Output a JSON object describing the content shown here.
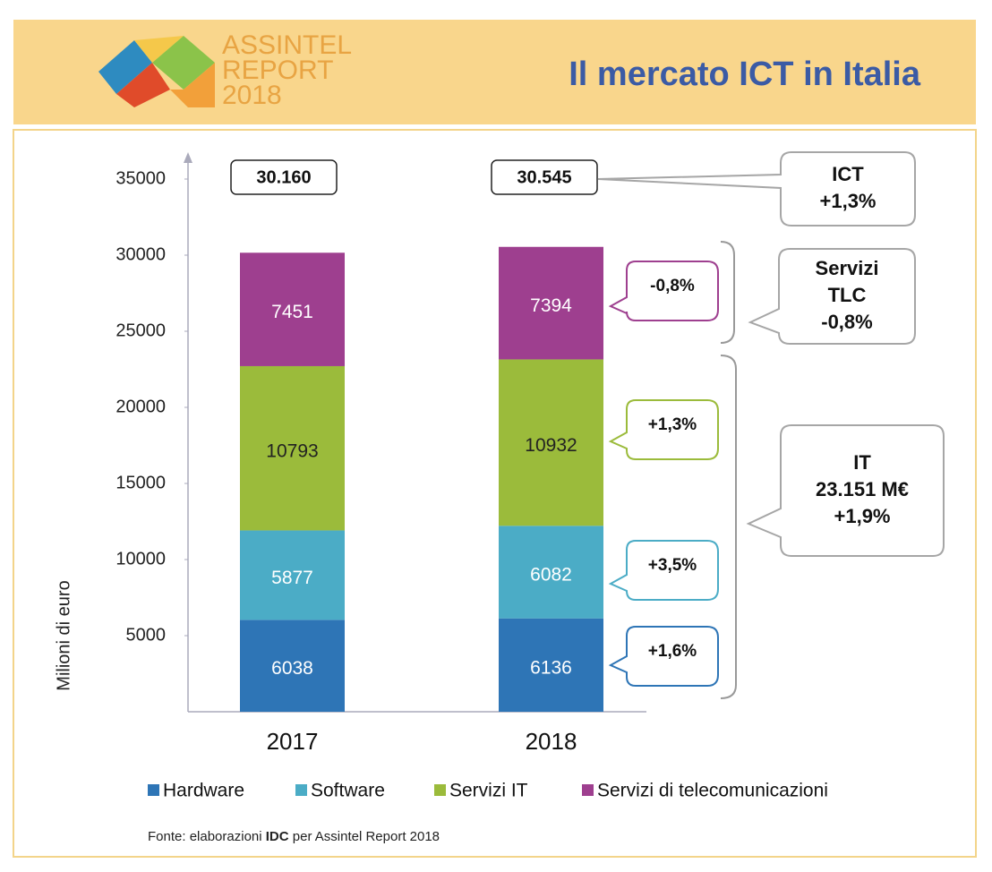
{
  "header": {
    "title": "Il mercato ICT in Italia",
    "logo": [
      "ASSINTEL",
      "REPORT",
      "2018"
    ]
  },
  "chart_data": {
    "type": "stacked_bar",
    "ylabel": "Milioni di euro",
    "categories": [
      "2017",
      "2018"
    ],
    "ylim": [
      0,
      35000
    ],
    "yticks": [
      5000,
      10000,
      15000,
      20000,
      25000,
      30000,
      35000
    ],
    "series": [
      {
        "name": "Hardware",
        "color": "#2e75b6",
        "label_color": "#ffffff",
        "values": [
          6038,
          6136
        ]
      },
      {
        "name": "Software",
        "color": "#4bacc6",
        "label_color": "#ffffff",
        "values": [
          5877,
          6082
        ]
      },
      {
        "name": "Servizi IT",
        "color": "#9bbb3b",
        "label_color": "#222222",
        "values": [
          10793,
          10932
        ]
      },
      {
        "name": "Servizi di telecomunicazioni",
        "color": "#9e3f8f",
        "label_color": "#ffffff",
        "values": [
          7451,
          7394
        ]
      }
    ],
    "totals": {
      "values": [
        30160,
        30545
      ],
      "value_labels": [
        "30.160",
        "30.545"
      ]
    },
    "growth_labels": [
      "+1,6%",
      "+3,5%",
      "+1,3%",
      "-0,8%"
    ],
    "callouts": [
      {
        "lines": [
          "ICT",
          "+1,3%"
        ]
      },
      {
        "lines": [
          "Servizi",
          "TLC",
          "-0,8%"
        ]
      },
      {
        "lines": [
          "IT",
          "23.151 M€",
          "+1,9%"
        ]
      }
    ]
  },
  "source": {
    "prefix": "Fonte: elaborazioni ",
    "bold": "IDC",
    "suffix": " per Assintel Report 2018"
  }
}
